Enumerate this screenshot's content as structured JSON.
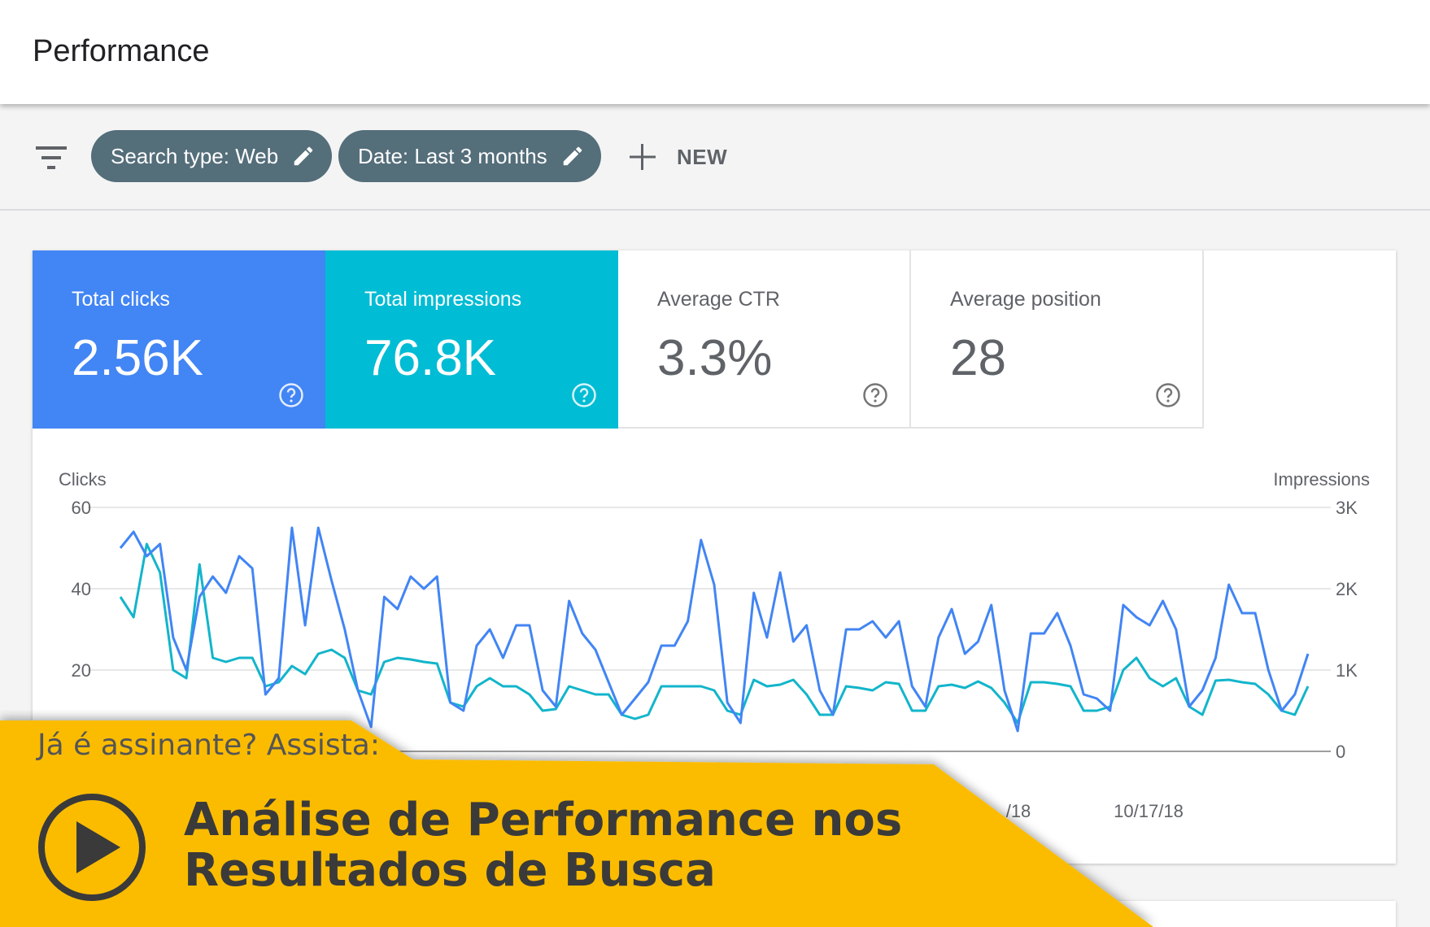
{
  "header": {
    "title": "Performance"
  },
  "toolbar": {
    "filter_icon": "filter-icon",
    "chips": [
      {
        "label": "Search type: Web",
        "icon": "pencil-icon"
      },
      {
        "label": "Date: Last 3 months",
        "icon": "pencil-icon"
      }
    ],
    "new_label": "NEW",
    "new_icon": "plus-icon"
  },
  "metrics": [
    {
      "label": "Total clicks",
      "value": "2.56K",
      "color": "#4285f4"
    },
    {
      "label": "Total impressions",
      "value": "76.8K",
      "color": "#00bcd4"
    },
    {
      "label": "Average CTR",
      "value": "3.3%"
    },
    {
      "label": "Average position",
      "value": "28"
    }
  ],
  "chart_data": {
    "type": "line",
    "ylabel_left": "Clicks",
    "ylabel_right": "Impressions",
    "ylim_left": [
      0,
      60
    ],
    "ylim_right": [
      0,
      3000
    ],
    "yticks_left": [
      "60",
      "40",
      "20"
    ],
    "yticks_right": [
      "3K",
      "2K",
      "1K",
      "0"
    ],
    "x_tick_labels": [
      "/18",
      "10/17/18"
    ],
    "grid": true,
    "series": [
      {
        "name": "Clicks",
        "color": "#4285f4",
        "axis": "left",
        "values": [
          50,
          54,
          48,
          51,
          28,
          20,
          38,
          43,
          39,
          48,
          45,
          14,
          18,
          55,
          31,
          55,
          42,
          30,
          15,
          6,
          38,
          35,
          43,
          40,
          43,
          12,
          10,
          26,
          30,
          23,
          31,
          31,
          15,
          11,
          37,
          29,
          25,
          17,
          9,
          13,
          17,
          26,
          26,
          32,
          52,
          41,
          12,
          7,
          39,
          28,
          44,
          27,
          31,
          15,
          9,
          30,
          30,
          32,
          28,
          32,
          16,
          11,
          28,
          35,
          24,
          27,
          36,
          15,
          5,
          29,
          29,
          34,
          26,
          14,
          13,
          10,
          36,
          33,
          31,
          37,
          30,
          11,
          15,
          23,
          41,
          34,
          34,
          20,
          10,
          14,
          24
        ]
      },
      {
        "name": "Impressions",
        "color": "#12b5cb",
        "axis": "right",
        "values": [
          1900,
          1650,
          2550,
          2200,
          1000,
          900,
          2300,
          1150,
          1100,
          1150,
          1150,
          800,
          850,
          1050,
          950,
          1200,
          1250,
          1150,
          750,
          700,
          1100,
          1150,
          1130,
          1100,
          1080,
          600,
          550,
          800,
          900,
          800,
          800,
          700,
          500,
          520,
          800,
          750,
          700,
          700,
          450,
          400,
          450,
          800,
          800,
          800,
          800,
          750,
          500,
          450,
          880,
          800,
          820,
          880,
          700,
          450,
          450,
          800,
          780,
          750,
          850,
          830,
          500,
          500,
          800,
          820,
          780,
          860,
          780,
          600,
          350,
          850,
          850,
          830,
          800,
          500,
          500,
          550,
          1000,
          1150,
          900,
          800,
          900,
          550,
          450,
          870,
          880,
          850,
          830,
          700,
          500,
          450,
          800
        ]
      }
    ]
  },
  "banner": {
    "prompt": "Já é assinante? Assista:",
    "title_line1": "Análise de Performance nos",
    "title_line2": "Resultados de Busca",
    "play_icon": "play-icon",
    "color": "#fbbc04"
  }
}
